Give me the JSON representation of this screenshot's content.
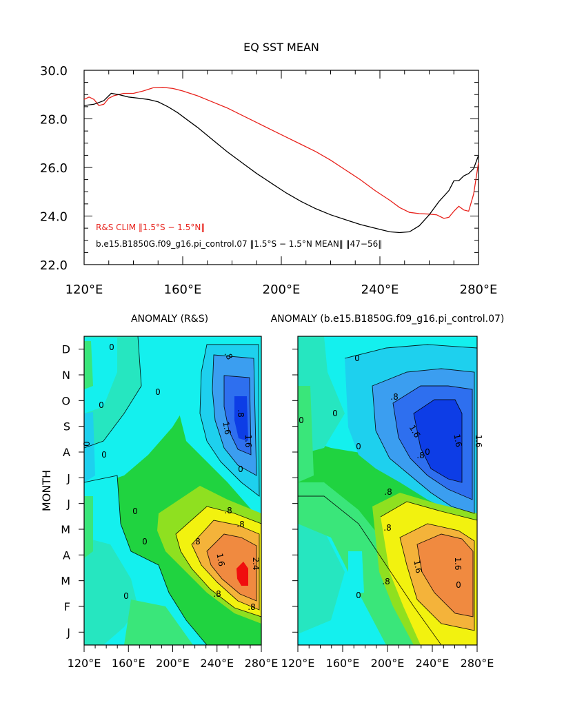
{
  "chart_data": [
    {
      "type": "line",
      "title": "EQ SST MEAN",
      "xlabel": "",
      "ylabel": "",
      "xlim": [
        120,
        280
      ],
      "ylim": [
        22.0,
        30.0
      ],
      "xticks": [
        120,
        160,
        200,
        240,
        280
      ],
      "xtick_labels": [
        "120°E",
        "160°E",
        "200°E",
        "240°E",
        "280°E"
      ],
      "yticks": [
        22.0,
        24.0,
        26.0,
        28.0,
        30.0
      ],
      "ytick_labels": [
        "22.0",
        "24.0",
        "26.0",
        "28.0",
        "30.0"
      ],
      "legend_position": "bottom-left",
      "series": [
        {
          "name": "R&S CLIM (1.5°S – 1.5°N)",
          "legend": "R&S CLIM ‖1.5°S − 1.5°N‖",
          "color": "#e8211b",
          "x": [
            120,
            122,
            124,
            126,
            128,
            130,
            132,
            134,
            136,
            138,
            140,
            144,
            148,
            152,
            156,
            160,
            166,
            172,
            178,
            184,
            190,
            196,
            202,
            208,
            214,
            220,
            226,
            232,
            238,
            244,
            248,
            252,
            256,
            260,
            263,
            266,
            268,
            270,
            272,
            274,
            276,
            278,
            280
          ],
          "y": [
            28.8,
            28.9,
            28.8,
            28.55,
            28.6,
            28.85,
            28.95,
            29.0,
            29.05,
            29.05,
            29.05,
            29.15,
            29.28,
            29.3,
            29.25,
            29.15,
            28.95,
            28.7,
            28.45,
            28.15,
            27.85,
            27.55,
            27.25,
            26.95,
            26.65,
            26.3,
            25.9,
            25.5,
            25.05,
            24.65,
            24.35,
            24.15,
            24.1,
            24.08,
            24.05,
            23.9,
            23.95,
            24.2,
            24.4,
            24.25,
            24.2,
            24.9,
            26.2
          ]
        },
        {
          "name": "b.e15.B1850G.f09_g16.pi_control.07 (1.5°S – 1.5°N MEAN) (47–56)",
          "legend": "b.e15.B1850G.f09_g16.pi_control.07 ‖1.5°S − 1.5°N MEAN‖ ‖47−56‖",
          "color": "#000000",
          "x": [
            120,
            124,
            128,
            131,
            134,
            138,
            142,
            146,
            150,
            154,
            158,
            162,
            166,
            172,
            178,
            184,
            190,
            196,
            202,
            208,
            214,
            220,
            226,
            232,
            238,
            244,
            248,
            252,
            256,
            260,
            264,
            268,
            270,
            272,
            274,
            276,
            278,
            280
          ],
          "y": [
            28.55,
            28.6,
            28.75,
            29.05,
            29.0,
            28.9,
            28.85,
            28.8,
            28.7,
            28.5,
            28.25,
            27.95,
            27.65,
            27.15,
            26.65,
            26.2,
            25.75,
            25.35,
            24.95,
            24.6,
            24.3,
            24.05,
            23.85,
            23.65,
            23.5,
            23.35,
            23.32,
            23.35,
            23.6,
            24.05,
            24.6,
            25.05,
            25.45,
            25.45,
            25.65,
            25.75,
            25.95,
            26.5
          ]
        }
      ]
    },
    {
      "type": "heatmap",
      "title": "ANOMALY (R&S)",
      "ylabel": "MONTH",
      "xlim": [
        120,
        280
      ],
      "xtick_labels": [
        "120°E",
        "160°E",
        "200°E",
        "240°E",
        "280°E"
      ],
      "ytick_labels": [
        "J",
        "F",
        "M",
        "A",
        "M",
        "J",
        "J",
        "A",
        "S",
        "O",
        "N",
        "D"
      ],
      "contour_labels": [
        ".8",
        ".8",
        "1.6",
        "1.6",
        "0",
        "0",
        "0",
        "0",
        "0",
        "0",
        ".8",
        ".8",
        "1.6",
        "2.4",
        ".8",
        ".8",
        ".8",
        "0",
        "0",
        "0"
      ],
      "colorscale": [
        "#0d3de6",
        "#2e6fef",
        "#3b9ef0",
        "#1ed0ee",
        "#14f0ee",
        "#26e6c0",
        "#3ae67a",
        "#20d340",
        "#8fe020",
        "#f2f20f",
        "#f4b33a",
        "#f08a40",
        "#f00e0e"
      ]
    },
    {
      "type": "heatmap",
      "title": "ANOMALY (b.e15.B1850G.f09_g16.pi_control.07)",
      "xlim": [
        120,
        280
      ],
      "xtick_labels": [
        "120°E",
        "160°E",
        "200°E",
        "240°E",
        "280°E"
      ],
      "ytick_labels": [
        "J",
        "F",
        "M",
        "A",
        "M",
        "J",
        "J",
        "A",
        "S",
        "O",
        "N",
        "D"
      ],
      "contour_labels": [
        ".8",
        ".8",
        "1.6",
        "1.6",
        "1.6",
        "0",
        "0",
        "0",
        "0",
        "0",
        ".8",
        ".8",
        "1.6",
        "1.6",
        ".8",
        "0",
        "0"
      ],
      "colorscale": [
        "#0d3de6",
        "#2e6fef",
        "#3b9ef0",
        "#1ed0ee",
        "#14f0ee",
        "#26e6c0",
        "#3ae67a",
        "#20d340",
        "#8fe020",
        "#f2f20f",
        "#f4b33a",
        "#f08a40",
        "#f00e0e"
      ]
    }
  ]
}
